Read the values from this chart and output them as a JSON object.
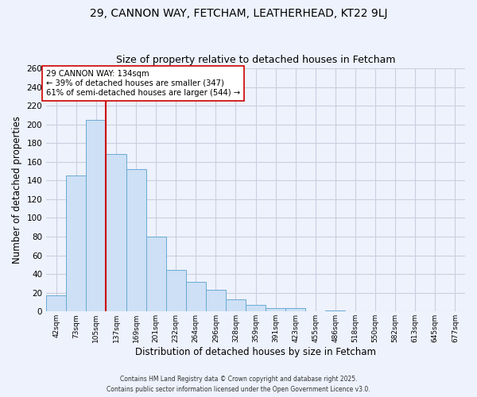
{
  "title": "29, CANNON WAY, FETCHAM, LEATHERHEAD, KT22 9LJ",
  "subtitle": "Size of property relative to detached houses in Fetcham",
  "xlabel": "Distribution of detached houses by size in Fetcham",
  "ylabel": "Number of detached properties",
  "bin_labels": [
    "42sqm",
    "73sqm",
    "105sqm",
    "137sqm",
    "169sqm",
    "201sqm",
    "232sqm",
    "264sqm",
    "296sqm",
    "328sqm",
    "359sqm",
    "391sqm",
    "423sqm",
    "455sqm",
    "486sqm",
    "518sqm",
    "550sqm",
    "582sqm",
    "613sqm",
    "645sqm",
    "677sqm"
  ],
  "bar_heights": [
    17,
    145,
    205,
    168,
    152,
    80,
    44,
    32,
    23,
    13,
    7,
    4,
    4,
    0,
    1,
    0,
    0,
    0,
    0,
    0,
    0
  ],
  "bar_color": "#cde0f5",
  "bar_edge_color": "#6aaad4",
  "ylim": [
    0,
    260
  ],
  "yticks": [
    0,
    20,
    40,
    60,
    80,
    100,
    120,
    140,
    160,
    180,
    200,
    220,
    240,
    260
  ],
  "vline_color": "#cc0000",
  "annotation_title": "29 CANNON WAY: 134sqm",
  "annotation_line1": "← 39% of detached houses are smaller (347)",
  "annotation_line2": "61% of semi-detached houses are larger (544) →",
  "annotation_box_color": "#ffffff",
  "annotation_box_edge": "#cc0000",
  "footer1": "Contains HM Land Registry data © Crown copyright and database right 2025.",
  "footer2": "Contains public sector information licensed under the Open Government Licence v3.0.",
  "background_color": "#eef2fc",
  "grid_color": "#c8cfdf",
  "title_fontsize": 10,
  "subtitle_fontsize": 9
}
